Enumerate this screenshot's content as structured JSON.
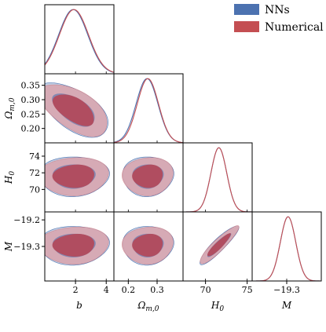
{
  "chart_data": {
    "type": "corner",
    "parameters": [
      {
        "name": "b",
        "label": "b",
        "range": [
          0.0,
          4.5
        ],
        "ticks": [
          2,
          4
        ],
        "tick_labels": [
          "2",
          "4"
        ]
      },
      {
        "name": "Omega_m0",
        "label": "Ωm,0",
        "range": [
          0.15,
          0.39
        ],
        "ticks": [
          0.2,
          0.3
        ],
        "tick_labels": [
          "0.2",
          "0.3"
        ],
        "y_ticks": [
          0.2,
          0.25,
          0.3,
          0.35
        ],
        "y_tick_labels": [
          "0.20",
          "0.25",
          "0.30",
          "0.35"
        ]
      },
      {
        "name": "H0",
        "label": "H0",
        "range": [
          67.3,
          75.6
        ],
        "ticks": [
          70,
          75
        ],
        "tick_labels": [
          "70",
          "75"
        ],
        "y_ticks": [
          70,
          72,
          74
        ],
        "y_tick_labels": [
          "70",
          "72",
          "74"
        ]
      },
      {
        "name": "M",
        "label": "M",
        "range": [
          -19.43,
          -19.17
        ],
        "ticks": [
          -19.3
        ],
        "tick_labels": [
          "−19.3"
        ],
        "y_ticks": [
          -19.3,
          -19.2
        ],
        "y_tick_labels": [
          "−19.3",
          "−19.2"
        ]
      }
    ],
    "series": [
      {
        "name": "NNs",
        "color": "#4c72b0",
        "posteriors_1d": [
          {
            "param": "b",
            "mean": 1.85,
            "sigma": 0.95
          },
          {
            "param": "Omega_m0",
            "mean": 0.265,
            "sigma": 0.038
          },
          {
            "param": "H0",
            "mean": 71.6,
            "sigma": 0.95
          },
          {
            "param": "M",
            "mean": -19.295,
            "sigma": 0.029
          }
        ]
      },
      {
        "name": "Numerical",
        "color": "#c44e52",
        "posteriors_1d": [
          {
            "param": "b",
            "mean": 1.9,
            "sigma": 0.95
          },
          {
            "param": "Omega_m0",
            "mean": 0.268,
            "sigma": 0.037
          },
          {
            "param": "H0",
            "mean": 71.6,
            "sigma": 0.95
          },
          {
            "param": "M",
            "mean": -19.295,
            "sigma": 0.029
          }
        ]
      }
    ],
    "contours_2d": [
      {
        "x": "b",
        "y": "Omega_m0",
        "center": [
          1.9,
          0.265
        ],
        "sd": [
          0.95,
          0.038
        ],
        "rho": -0.6
      },
      {
        "x": "b",
        "y": "H0",
        "center": [
          1.9,
          71.6
        ],
        "sd": [
          0.95,
          0.95
        ],
        "rho": 0.0
      },
      {
        "x": "Omega_m0",
        "y": "H0",
        "center": [
          0.268,
          71.6
        ],
        "sd": [
          0.037,
          0.95
        ],
        "rho": 0.0
      },
      {
        "x": "b",
        "y": "M",
        "center": [
          1.9,
          -19.295
        ],
        "sd": [
          0.95,
          0.029
        ],
        "rho": 0.0
      },
      {
        "x": "Omega_m0",
        "y": "M",
        "center": [
          0.268,
          -19.295
        ],
        "sd": [
          0.037,
          0.029
        ],
        "rho": 0.0
      },
      {
        "x": "H0",
        "y": "M",
        "center": [
          71.6,
          -19.295
        ],
        "sd": [
          0.95,
          0.029
        ],
        "rho": 0.9
      }
    ],
    "legend": {
      "placement": "top-right",
      "entries": [
        "NNs",
        "Numerical"
      ]
    },
    "grid": false
  }
}
